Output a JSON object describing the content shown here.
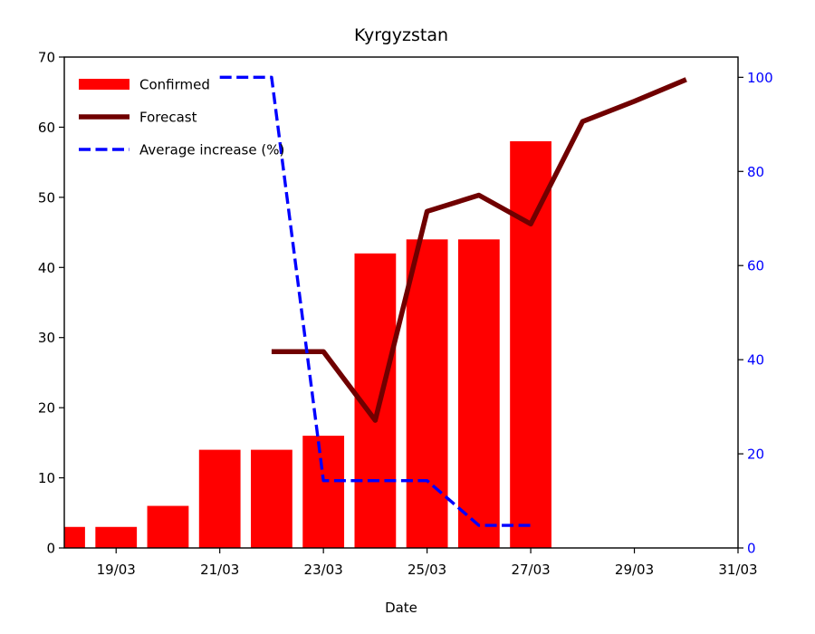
{
  "chart_data": {
    "type": "bar",
    "title": "Kyrgyzstan",
    "xlabel": "Date",
    "ylabel": "",
    "ylabel_right": "",
    "x_ticks": [
      "19/03",
      "21/03",
      "23/03",
      "25/03",
      "27/03",
      "29/03",
      "31/03"
    ],
    "y_ticks_left": [
      "0",
      "10",
      "20",
      "30",
      "40",
      "50",
      "60",
      "70"
    ],
    "y_ticks_right": [
      "0",
      "20",
      "40",
      "60",
      "80",
      "100"
    ],
    "xlim": [
      "2020-03-18",
      "2020-03-31"
    ],
    "ylim": [
      0,
      70
    ],
    "ylim_right": [
      0,
      104.3
    ],
    "grid": false,
    "legend_position": "top-left",
    "series": [
      {
        "name": "Confirmed",
        "kind": "bar",
        "axis": "left",
        "color": "#ff0000",
        "points": [
          {
            "x": "2020-03-18",
            "y": 3
          },
          {
            "x": "2020-03-19",
            "y": 3
          },
          {
            "x": "2020-03-20",
            "y": 6
          },
          {
            "x": "2020-03-21",
            "y": 14
          },
          {
            "x": "2020-03-22",
            "y": 14
          },
          {
            "x": "2020-03-23",
            "y": 16
          },
          {
            "x": "2020-03-24",
            "y": 42
          },
          {
            "x": "2020-03-25",
            "y": 44
          },
          {
            "x": "2020-03-26",
            "y": 44
          },
          {
            "x": "2020-03-27",
            "y": 58
          }
        ]
      },
      {
        "name": "Forecast",
        "kind": "line",
        "axis": "left",
        "color": "#700000",
        "points": [
          {
            "x": "2020-03-22",
            "y": 28
          },
          {
            "x": "2020-03-23",
            "y": 28
          },
          {
            "x": "2020-03-24",
            "y": 18.2
          },
          {
            "x": "2020-03-25",
            "y": 48
          },
          {
            "x": "2020-03-26",
            "y": 50.3
          },
          {
            "x": "2020-03-27",
            "y": 46.2
          },
          {
            "x": "2020-03-28",
            "y": 60.8
          },
          {
            "x": "2020-03-29",
            "y": 63.7
          },
          {
            "x": "2020-03-30",
            "y": 66.8
          }
        ]
      },
      {
        "name": "Average increase (%)",
        "kind": "line",
        "axis": "right",
        "color": "#0000ff",
        "dash": true,
        "points": [
          {
            "x": "2020-03-21",
            "y": 100
          },
          {
            "x": "2020-03-22",
            "y": 100
          },
          {
            "x": "2020-03-23",
            "y": 14.3
          },
          {
            "x": "2020-03-24",
            "y": 14.3
          },
          {
            "x": "2020-03-25",
            "y": 14.3
          },
          {
            "x": "2020-03-26",
            "y": 4.8
          },
          {
            "x": "2020-03-27",
            "y": 4.8
          }
        ]
      }
    ]
  }
}
